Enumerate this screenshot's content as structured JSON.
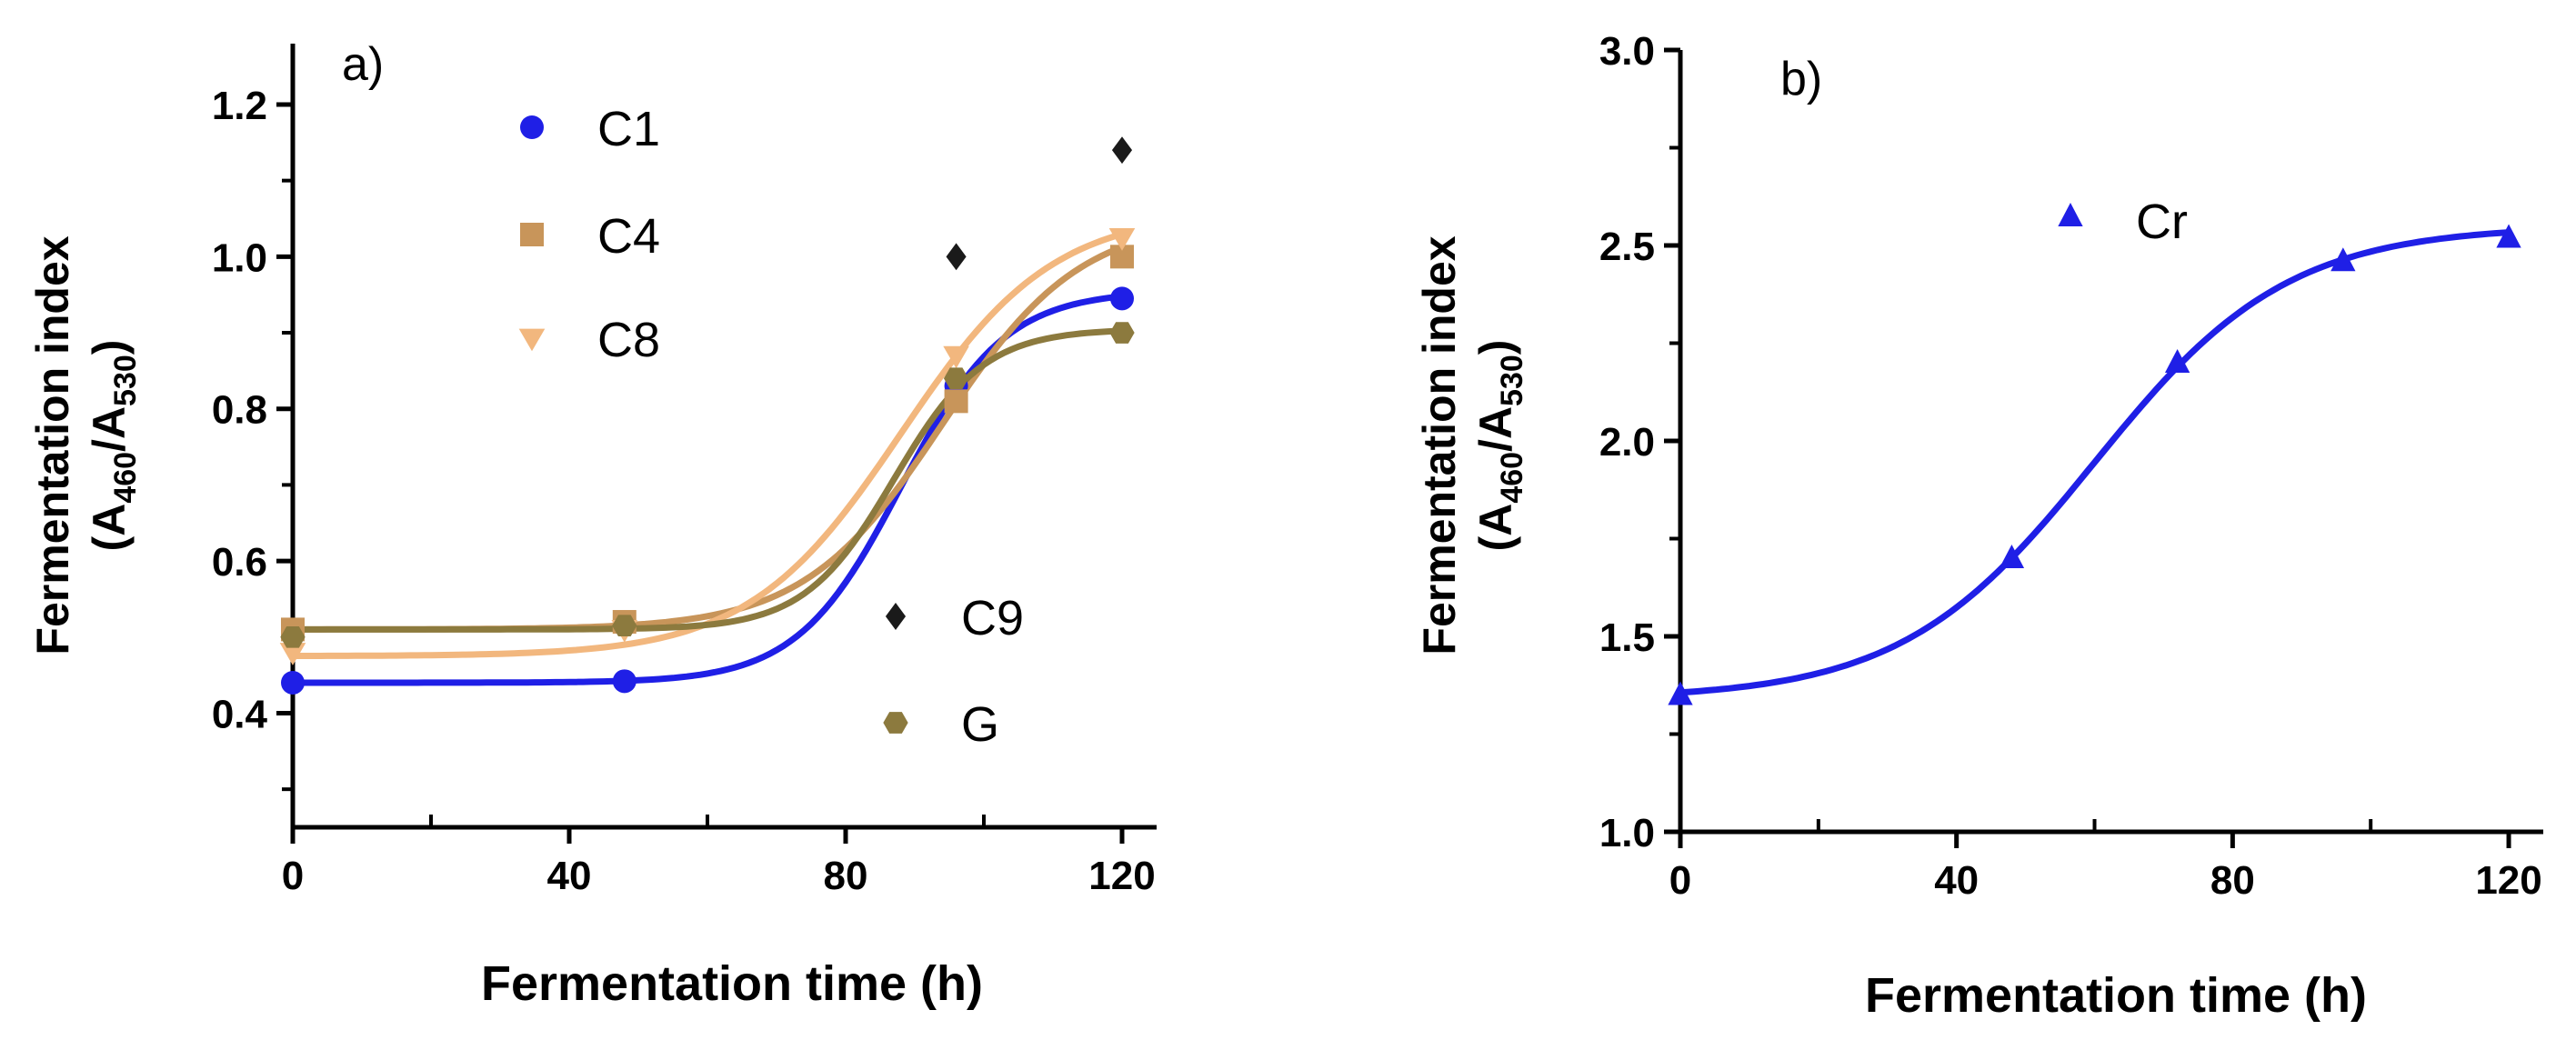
{
  "chart_data": [
    {
      "type": "scatter",
      "panel_label": "a)",
      "xlabel": "Fermentation time (h)",
      "ylabel_line1": "Fermentation index",
      "ylabel_line2": {
        "open": "(A",
        "sub1": "460",
        "mid": "/A",
        "sub2": "530",
        "close": ")"
      },
      "xlim": [
        0,
        125
      ],
      "ylim": [
        0.25,
        1.28
      ],
      "xticks": [
        0,
        40,
        80,
        120
      ],
      "xtick_labels": [
        "0",
        "40",
        "80",
        "120"
      ],
      "yticks": [
        0.4,
        0.6,
        0.8,
        1.0,
        1.2
      ],
      "ytick_labels": [
        "0.4",
        "0.6",
        "0.8",
        "1.0",
        "1.2"
      ],
      "series": [
        {
          "name": "C1",
          "marker": "circle",
          "color": "#1f1fe6",
          "x": [
            0,
            48,
            96,
            120
          ],
          "y": [
            0.44,
            0.442,
            0.83,
            0.945
          ],
          "fit": {
            "bottom": 0.44,
            "top": 0.955,
            "x50": 88,
            "slope": 7.5
          }
        },
        {
          "name": "C4",
          "marker": "square",
          "color": "#c8955a",
          "x": [
            0,
            48,
            96,
            120
          ],
          "y": [
            0.51,
            0.52,
            0.81,
            1.0
          ],
          "fit": {
            "bottom": 0.51,
            "top": 1.05,
            "x50": 94,
            "slope": 10
          }
        },
        {
          "name": "C8",
          "marker": "triangle-down",
          "color": "#f2b77e",
          "x": [
            0,
            48,
            96,
            120
          ],
          "y": [
            0.48,
            0.51,
            0.87,
            1.025
          ],
          "fit": {
            "bottom": 0.475,
            "top": 1.06,
            "x50": 88,
            "slope": 11
          }
        },
        {
          "name": "C9",
          "marker": "diamond",
          "color": "#1a1a1a",
          "x": [
            96,
            120
          ],
          "y": [
            1.0,
            1.14
          ]
        },
        {
          "name": "G",
          "marker": "hexagon",
          "color": "#8c7a3e",
          "x": [
            0,
            48,
            96,
            120
          ],
          "y": [
            0.5,
            0.515,
            0.84,
            0.9
          ],
          "fit": {
            "bottom": 0.51,
            "top": 0.905,
            "x50": 87,
            "slope": 6.5
          }
        }
      ],
      "legend_position": "inside"
    },
    {
      "type": "scatter",
      "panel_label": "b)",
      "xlabel": "Fermentation time (h)",
      "ylabel_line1": "Fermentation index",
      "ylabel_line2": {
        "open": "(A",
        "sub1": "460",
        "mid": "/A",
        "sub2": "530",
        "close": ")"
      },
      "xlim": [
        0,
        125
      ],
      "ylim": [
        1.0,
        3.0
      ],
      "xticks": [
        0,
        40,
        80,
        120
      ],
      "xtick_labels": [
        "0",
        "40",
        "80",
        "120"
      ],
      "yticks": [
        1.0,
        1.5,
        2.0,
        2.5,
        3.0
      ],
      "ytick_labels": [
        "1.0",
        "1.5",
        "2.0",
        "2.5",
        "3.0"
      ],
      "series": [
        {
          "name": "Cr",
          "marker": "triangle-up",
          "color": "#1f1fe6",
          "x": [
            0,
            48,
            72,
            96,
            120
          ],
          "y": [
            1.35,
            1.7,
            2.2,
            2.46,
            2.52
          ],
          "fit": {
            "bottom": 1.34,
            "top": 2.55,
            "x50": 60,
            "slope": 14
          }
        }
      ],
      "legend_position": "top-center"
    }
  ]
}
